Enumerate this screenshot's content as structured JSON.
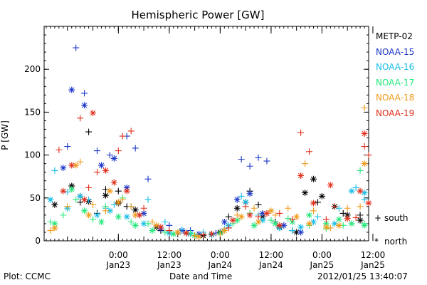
{
  "chart_data": {
    "type": "scatter",
    "title": "Hemispheric Power [GW]",
    "ylabel": "P [GW]",
    "xlabel": "Date and Time",
    "ylim": [
      0,
      250
    ],
    "yticks": [
      0,
      50,
      100,
      150,
      200
    ],
    "xlim": [
      -17.5,
      59
    ],
    "xticks": [
      {
        "hour": 0,
        "time": "0:00",
        "date": "Jan23"
      },
      {
        "hour": 12,
        "time": "12:00",
        "date": "Jan23"
      },
      {
        "hour": 24,
        "time": "0:00",
        "date": "Jan24"
      },
      {
        "hour": 36,
        "time": "12:00",
        "date": "Jan24"
      },
      {
        "hour": 48,
        "time": "0:00",
        "date": "Jan25"
      },
      {
        "hour": 60,
        "time": "12:00",
        "date": "Jan25"
      }
    ],
    "x_units": "hours since 2012/01/23 00:00",
    "symbols": {
      "south": "+",
      "north": "*"
    },
    "series": [
      {
        "name": "METP-02",
        "color": "#000000",
        "south": [
          [
            -9,
            45
          ],
          [
            -7,
            127
          ],
          [
            -5,
            32
          ],
          [
            -3,
            60
          ],
          [
            0,
            58
          ],
          [
            2,
            40
          ],
          [
            5,
            30
          ],
          [
            10,
            12
          ],
          [
            14,
            8
          ],
          [
            18,
            6
          ],
          [
            22,
            8
          ],
          [
            26,
            28
          ],
          [
            31,
            58
          ],
          [
            33,
            42
          ],
          [
            37,
            22
          ],
          [
            41,
            12
          ],
          [
            47,
            45
          ],
          [
            53,
            32
          ],
          [
            57,
            30
          ]
        ],
        "north": [
          [
            -15,
            42
          ],
          [
            -11,
            64
          ],
          [
            -9,
            52
          ],
          [
            -7,
            46
          ],
          [
            -3,
            53
          ],
          [
            0,
            44
          ],
          [
            4,
            36
          ],
          [
            9,
            16
          ],
          [
            16,
            9
          ],
          [
            20,
            6
          ],
          [
            24,
            10
          ],
          [
            28,
            38
          ],
          [
            30,
            45
          ],
          [
            34,
            28
          ],
          [
            38,
            16
          ],
          [
            42,
            10
          ],
          [
            44,
            56
          ],
          [
            46,
            72
          ],
          [
            48,
            52
          ],
          [
            51,
            40
          ],
          [
            54,
            30
          ],
          [
            57,
            24
          ]
        ]
      },
      {
        "name": "NOAA-15",
        "color": "#1a35c8",
        "south": [
          [
            -12,
            110
          ],
          [
            -10,
            225
          ],
          [
            -8,
            172
          ],
          [
            -5,
            105
          ],
          [
            -2,
            100
          ],
          [
            2,
            122
          ],
          [
            4,
            108
          ],
          [
            7,
            72
          ],
          [
            12,
            18
          ],
          [
            17,
            12
          ],
          [
            23,
            9
          ],
          [
            29,
            95
          ],
          [
            31,
            87
          ],
          [
            33,
            97
          ],
          [
            35,
            93
          ]
        ],
        "north": [
          [
            -13,
            85
          ],
          [
            -11,
            176
          ],
          [
            -8,
            158
          ],
          [
            -4,
            88
          ],
          [
            -1,
            96
          ],
          [
            2,
            62
          ],
          [
            6,
            32
          ],
          [
            10,
            14
          ],
          [
            15,
            12
          ],
          [
            19,
            8
          ],
          [
            25,
            22
          ],
          [
            28,
            48
          ],
          [
            31,
            55
          ],
          [
            34,
            32
          ],
          [
            39,
            18
          ],
          [
            43,
            10
          ]
        ]
      },
      {
        "name": "NOAA-16",
        "color": "#17bde8",
        "south": [
          [
            -15,
            82
          ],
          [
            -12,
            57
          ],
          [
            -7,
            48
          ],
          [
            -3,
            38
          ],
          [
            -1,
            42
          ],
          [
            3,
            40
          ],
          [
            7,
            48
          ],
          [
            11,
            22
          ],
          [
            15,
            13
          ],
          [
            20,
            10
          ],
          [
            25,
            14
          ],
          [
            29,
            52
          ],
          [
            33,
            30
          ],
          [
            37,
            20
          ],
          [
            41,
            12
          ],
          [
            47,
            28
          ],
          [
            52,
            38
          ],
          [
            56,
            62
          ],
          [
            58,
            48
          ]
        ],
        "north": [
          [
            -16,
            48
          ],
          [
            -12,
            38
          ],
          [
            -9,
            52
          ],
          [
            -5,
            30
          ],
          [
            -2,
            35
          ],
          [
            2,
            28
          ],
          [
            6,
            20
          ],
          [
            12,
            9
          ],
          [
            17,
            8
          ],
          [
            22,
            7
          ],
          [
            26,
            18
          ],
          [
            30,
            45
          ],
          [
            34,
            24
          ],
          [
            38,
            15
          ],
          [
            43,
            16
          ],
          [
            46,
            22
          ],
          [
            51,
            20
          ],
          [
            55,
            58
          ],
          [
            58,
            56
          ]
        ]
      },
      {
        "name": "NOAA-17",
        "color": "#22e87a",
        "south": [
          [
            -16,
            22
          ],
          [
            -13,
            30
          ],
          [
            -10,
            48
          ],
          [
            -6,
            25
          ],
          [
            -3,
            40
          ],
          [
            1,
            50
          ],
          [
            3,
            22
          ],
          [
            7,
            20
          ],
          [
            11,
            10
          ],
          [
            17,
            9
          ],
          [
            22,
            8
          ],
          [
            27,
            20
          ],
          [
            31,
            32
          ],
          [
            36,
            24
          ],
          [
            40,
            26
          ],
          [
            45,
            18
          ],
          [
            49,
            14
          ],
          [
            53,
            18
          ],
          [
            57,
            82
          ],
          [
            58,
            20
          ]
        ],
        "north": [
          [
            -15,
            20
          ],
          [
            -11,
            60
          ],
          [
            -8,
            35
          ],
          [
            -4,
            22
          ],
          [
            0,
            28
          ],
          [
            4,
            18
          ],
          [
            8,
            12
          ],
          [
            13,
            8
          ],
          [
            18,
            6
          ],
          [
            24,
            9
          ],
          [
            28,
            24
          ],
          [
            32,
            18
          ],
          [
            37,
            20
          ],
          [
            41,
            22
          ],
          [
            45,
            30
          ],
          [
            49,
            20
          ],
          [
            52,
            25
          ],
          [
            55,
            20
          ],
          [
            58,
            18
          ]
        ]
      },
      {
        "name": "NOAA-18",
        "color": "#f09a18",
        "south": [
          [
            -16,
            12
          ],
          [
            -12,
            40
          ],
          [
            -9,
            92
          ],
          [
            -6,
            42
          ],
          [
            -3,
            35
          ],
          [
            1,
            48
          ],
          [
            3,
            40
          ],
          [
            8,
            22
          ],
          [
            12,
            12
          ],
          [
            18,
            6
          ],
          [
            24,
            8
          ],
          [
            28,
            30
          ],
          [
            32,
            38
          ],
          [
            37,
            30
          ],
          [
            40,
            38
          ],
          [
            44,
            90
          ],
          [
            46,
            35
          ],
          [
            50,
            15
          ],
          [
            54,
            38
          ],
          [
            57,
            40
          ],
          [
            58,
            155
          ]
        ],
        "north": [
          [
            -15,
            15
          ],
          [
            -10,
            88
          ],
          [
            -7,
            30
          ],
          [
            -2,
            58
          ],
          [
            0,
            45
          ],
          [
            4,
            30
          ],
          [
            9,
            18
          ],
          [
            14,
            10
          ],
          [
            19,
            5
          ],
          [
            25,
            12
          ],
          [
            29,
            28
          ],
          [
            33,
            22
          ],
          [
            36,
            35
          ],
          [
            42,
            28
          ],
          [
            45,
            20
          ],
          [
            49,
            16
          ],
          [
            52,
            18
          ],
          [
            58,
            90
          ]
        ]
      },
      {
        "name": "NOAA-19",
        "color": "#e02e1a",
        "south": [
          [
            -14,
            106
          ],
          [
            -9,
            143
          ],
          [
            -7,
            62
          ],
          [
            -5,
            80
          ],
          [
            0,
            105
          ],
          [
            1,
            122
          ],
          [
            3,
            128
          ],
          [
            6,
            38
          ],
          [
            12,
            12
          ],
          [
            20,
            7
          ],
          [
            26,
            15
          ],
          [
            30,
            40
          ],
          [
            33,
            28
          ],
          [
            38,
            32
          ],
          [
            41,
            25
          ],
          [
            43,
            126
          ],
          [
            45,
            104
          ],
          [
            49,
            25
          ],
          [
            51,
            40
          ],
          [
            56,
            27
          ],
          [
            58,
            110
          ],
          [
            59,
            100
          ]
        ],
        "north": [
          [
            -13,
            58
          ],
          [
            -11,
            88
          ],
          [
            -8,
            48
          ],
          [
            -6,
            149
          ],
          [
            -3,
            82
          ],
          [
            -1,
            68
          ],
          [
            2,
            58
          ],
          [
            5,
            30
          ],
          [
            10,
            16
          ],
          [
            16,
            9
          ],
          [
            22,
            8
          ],
          [
            27,
            24
          ],
          [
            31,
            30
          ],
          [
            35,
            32
          ],
          [
            38,
            18
          ],
          [
            43,
            76
          ],
          [
            46,
            44
          ],
          [
            50,
            65
          ],
          [
            54,
            26
          ],
          [
            57,
            58
          ],
          [
            58,
            125
          ],
          [
            59,
            44
          ]
        ]
      }
    ]
  },
  "legend_symbols": {
    "south": "south",
    "north": "north"
  },
  "footer": {
    "left": "Plot: CCMC",
    "center": "Date and Time",
    "right": "2012/01/25 13:40:07"
  }
}
